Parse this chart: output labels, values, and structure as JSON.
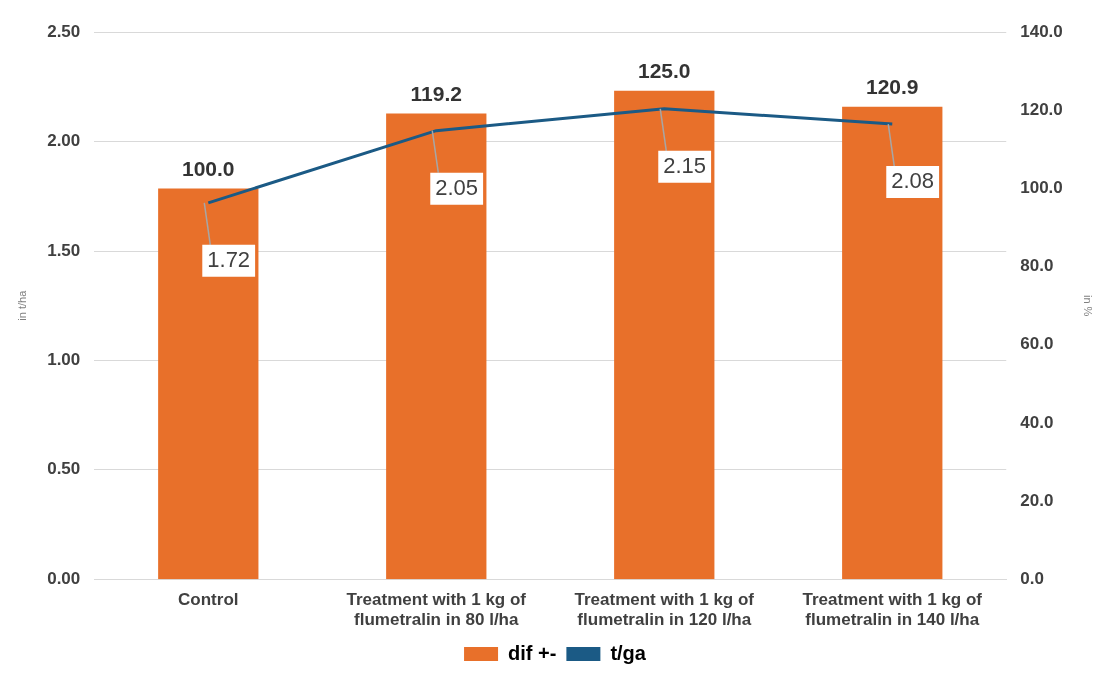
{
  "chart_data": {
    "type": "bar",
    "categories": [
      "Control",
      "Treatment with 1 kg of flumetralin in 80 l/ha",
      "Treatment with 1 kg of flumetralin in 120 l/ha",
      "Treatment with 1 kg of flumetralin in 140 l/ha"
    ],
    "series": [
      {
        "name": "dif +-",
        "axis": "y2",
        "color": "#e8702a",
        "values": [
          100.0,
          119.2,
          125.0,
          120.9
        ],
        "value_labels": [
          "100.0",
          "119.2",
          "125.0",
          "120.9"
        ]
      },
      {
        "name": "t/ga",
        "type": "line",
        "axis": "y",
        "color": "#1b5a85",
        "values": [
          1.72,
          2.05,
          2.15,
          2.08
        ],
        "value_labels": [
          "1.72",
          "2.05",
          "2.15",
          "2.08"
        ]
      }
    ],
    "ylabel": "in t/ha",
    "y2label": "in %",
    "ylim": [
      0,
      2.5
    ],
    "yticks": [
      {
        "value": 0,
        "label": "0.00"
      },
      {
        "value": 0.5,
        "label": "0.50"
      },
      {
        "value": 1,
        "label": "1.00"
      },
      {
        "value": 1.5,
        "label": "1.50"
      },
      {
        "value": 2,
        "label": "2.00"
      },
      {
        "value": 2.5,
        "label": "2.50"
      }
    ],
    "y2lim": [
      0,
      140
    ],
    "y2ticks": [
      {
        "value": 0,
        "label": "0.0"
      },
      {
        "value": 20,
        "label": "20.0"
      },
      {
        "value": 40,
        "label": "40.0"
      },
      {
        "value": 60,
        "label": "60.0"
      },
      {
        "value": 80,
        "label": "80.0"
      },
      {
        "value": 100,
        "label": "100.0"
      },
      {
        "value": 120,
        "label": "120.0"
      },
      {
        "value": 140,
        "label": "140.0"
      }
    ],
    "grid": "y",
    "legend": "bottom",
    "marker": "none"
  }
}
